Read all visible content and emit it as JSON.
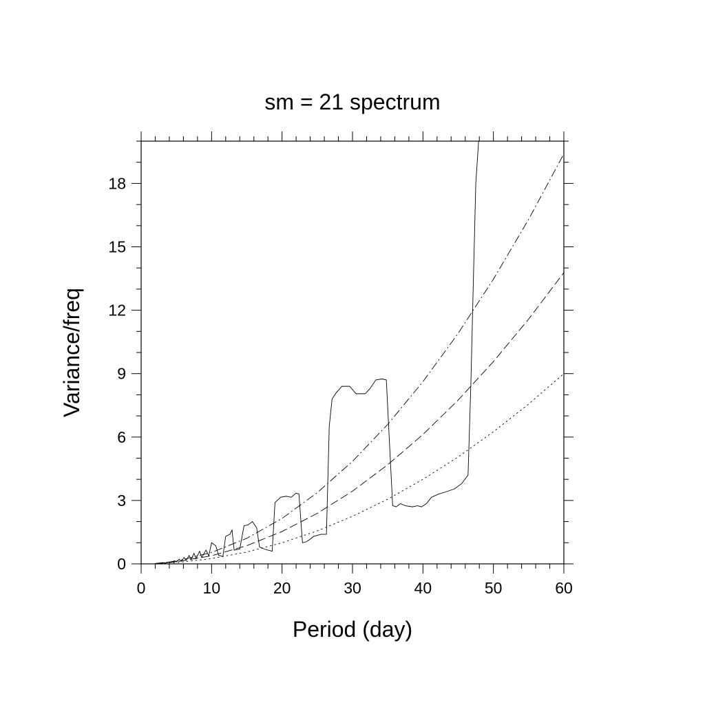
{
  "chart_data": {
    "type": "line",
    "title": "sm = 21 spectrum",
    "xlabel": "Period (day)",
    "ylabel": "Variance/freq",
    "xlim": [
      0,
      60
    ],
    "ylim": [
      0,
      20
    ],
    "xticks": [
      0,
      10,
      20,
      30,
      40,
      50,
      60
    ],
    "yticks": [
      0,
      3,
      6,
      9,
      12,
      15,
      18
    ],
    "grid": false,
    "legend": "none",
    "series": [
      {
        "style": "solid",
        "points": [
          [
            2,
            0
          ],
          [
            2.5,
            0.02
          ],
          [
            3,
            0.03
          ],
          [
            3.3,
            0.06
          ],
          [
            3.6,
            0.04
          ],
          [
            4,
            0.1
          ],
          [
            4.3,
            0.06
          ],
          [
            4.7,
            0.15
          ],
          [
            5,
            0.09
          ],
          [
            5.4,
            0.22
          ],
          [
            5.7,
            0.12
          ],
          [
            6.1,
            0.3
          ],
          [
            6.4,
            0.16
          ],
          [
            6.8,
            0.4
          ],
          [
            7.1,
            0.2
          ],
          [
            7.5,
            0.5
          ],
          [
            7.8,
            0.25
          ],
          [
            8.3,
            0.6
          ],
          [
            8.6,
            0.3
          ],
          [
            9.2,
            0.65
          ],
          [
            9.6,
            0.38
          ],
          [
            10,
            1.0
          ],
          [
            10.6,
            0.85
          ],
          [
            11,
            0.4
          ],
          [
            11.6,
            0.35
          ],
          [
            12,
            1.3
          ],
          [
            12.6,
            1.4
          ],
          [
            12.9,
            1.6
          ],
          [
            13.2,
            0.65
          ],
          [
            14,
            0.7
          ],
          [
            14.6,
            1.8
          ],
          [
            15.2,
            1.85
          ],
          [
            15.8,
            2.0
          ],
          [
            16.4,
            1.7
          ],
          [
            16.8,
            0.8
          ],
          [
            17.5,
            0.7
          ],
          [
            18,
            0.65
          ],
          [
            18.6,
            0.6
          ],
          [
            19,
            2.9
          ],
          [
            19.8,
            3.15
          ],
          [
            20.6,
            3.2
          ],
          [
            21.3,
            3.15
          ],
          [
            22,
            3.35
          ],
          [
            22.4,
            3.3
          ],
          [
            22.9,
            1.0
          ],
          [
            23.5,
            1.05
          ],
          [
            24.5,
            1.3
          ],
          [
            25.5,
            1.4
          ],
          [
            26.3,
            1.4
          ],
          [
            26.7,
            6.5
          ],
          [
            27.1,
            7.8
          ],
          [
            27.7,
            8.1
          ],
          [
            28.5,
            8.4
          ],
          [
            29.6,
            8.4
          ],
          [
            30.5,
            8.05
          ],
          [
            31.8,
            8.05
          ],
          [
            32.5,
            8.3
          ],
          [
            33.3,
            8.7
          ],
          [
            34.2,
            8.75
          ],
          [
            34.8,
            8.7
          ],
          [
            35.7,
            2.75
          ],
          [
            36.2,
            2.7
          ],
          [
            36.8,
            2.85
          ],
          [
            37.5,
            2.75
          ],
          [
            38.5,
            2.7
          ],
          [
            39.2,
            2.75
          ],
          [
            39.8,
            2.7
          ],
          [
            40.5,
            2.85
          ],
          [
            41.2,
            3.15
          ],
          [
            42.2,
            3.3
          ],
          [
            43.2,
            3.4
          ],
          [
            44.5,
            3.55
          ],
          [
            45.5,
            3.8
          ],
          [
            46.4,
            4.2
          ],
          [
            46.8,
            8.5
          ],
          [
            47.2,
            14
          ],
          [
            47.5,
            18
          ],
          [
            47.9,
            20
          ]
        ]
      },
      {
        "style": "dotted",
        "points": [
          [
            2,
            0.01
          ],
          [
            5,
            0.06
          ],
          [
            10,
            0.25
          ],
          [
            15,
            0.56
          ],
          [
            20,
            1.0
          ],
          [
            25,
            1.56
          ],
          [
            30,
            2.25
          ],
          [
            35,
            3.06
          ],
          [
            40,
            4.0
          ],
          [
            45,
            5.06
          ],
          [
            50,
            6.25
          ],
          [
            55,
            7.56
          ],
          [
            60,
            9.0
          ]
        ]
      },
      {
        "style": "dashed",
        "points": [
          [
            2,
            0.015
          ],
          [
            5,
            0.1
          ],
          [
            10,
            0.385
          ],
          [
            15,
            0.86
          ],
          [
            20,
            1.53
          ],
          [
            25,
            2.39
          ],
          [
            30,
            3.44
          ],
          [
            35,
            4.69
          ],
          [
            40,
            6.12
          ],
          [
            45,
            7.75
          ],
          [
            50,
            9.57
          ],
          [
            55,
            11.58
          ],
          [
            60,
            13.78
          ]
        ]
      },
      {
        "style": "dashdot",
        "points": [
          [
            2,
            0.02
          ],
          [
            5,
            0.13
          ],
          [
            10,
            0.54
          ],
          [
            15,
            1.21
          ],
          [
            20,
            2.15
          ],
          [
            25,
            3.37
          ],
          [
            30,
            4.85
          ],
          [
            35,
            6.6
          ],
          [
            40,
            8.62
          ],
          [
            45,
            10.91
          ],
          [
            50,
            13.47
          ],
          [
            55,
            16.3
          ],
          [
            60,
            19.4
          ]
        ]
      }
    ]
  }
}
